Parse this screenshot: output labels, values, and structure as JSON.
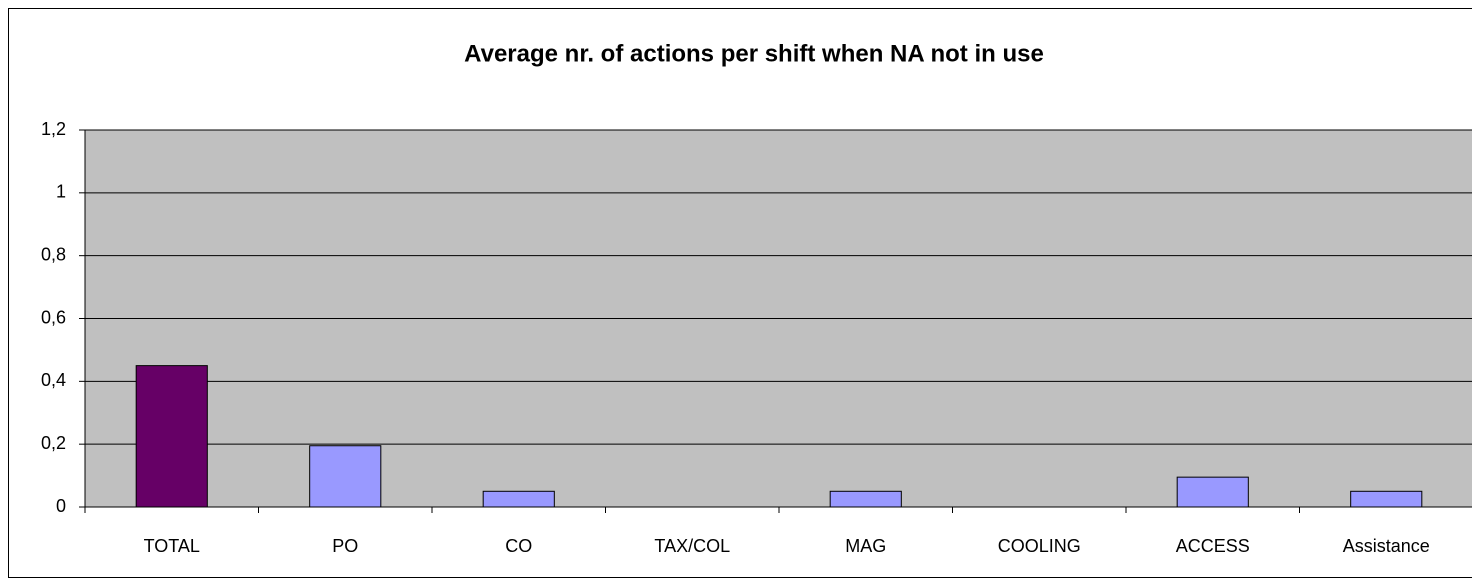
{
  "chart_data": {
    "type": "bar",
    "title": "Average nr. of actions per shift when NA not in use",
    "categories": [
      "TOTAL",
      "PO",
      "CO",
      "TAX/COL",
      "MAG",
      "COOLING",
      "ACCESS",
      "Assistance"
    ],
    "values": [
      0.45,
      0.195,
      0.05,
      0,
      0.05,
      0,
      0.095,
      0.05
    ],
    "colors": [
      "#660066",
      "#9999ff",
      "#9999ff",
      "#9999ff",
      "#9999ff",
      "#9999ff",
      "#9999ff",
      "#9999ff"
    ],
    "ylim": [
      0,
      1.2
    ],
    "yticks": [
      0,
      {
        "value": 0.2,
        "label": "0,2"
      },
      {
        "value": 0.4,
        "label": "0,4"
      },
      {
        "value": 0.6,
        "label": "0,6"
      },
      {
        "value": 0.8,
        "label": "0,8"
      },
      1,
      {
        "value": 1.2,
        "label": "1,2"
      }
    ],
    "grid": true
  }
}
